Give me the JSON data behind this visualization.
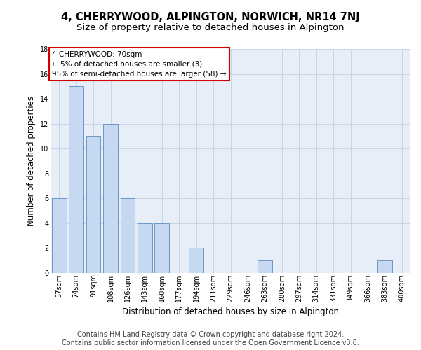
{
  "title": "4, CHERRYWOOD, ALPINGTON, NORWICH, NR14 7NJ",
  "subtitle": "Size of property relative to detached houses in Alpington",
  "xlabel": "Distribution of detached houses by size in Alpington",
  "ylabel": "Number of detached properties",
  "categories": [
    "57sqm",
    "74sqm",
    "91sqm",
    "108sqm",
    "126sqm",
    "143sqm",
    "160sqm",
    "177sqm",
    "194sqm",
    "211sqm",
    "229sqm",
    "246sqm",
    "263sqm",
    "280sqm",
    "297sqm",
    "314sqm",
    "331sqm",
    "349sqm",
    "366sqm",
    "383sqm",
    "400sqm"
  ],
  "values": [
    6,
    15,
    11,
    12,
    6,
    4,
    4,
    0,
    2,
    0,
    0,
    0,
    1,
    0,
    0,
    0,
    0,
    0,
    0,
    1,
    0
  ],
  "bar_color": "#c6d9f0",
  "bar_edge_color": "#5b8ec4",
  "grid_color": "#c8d4e8",
  "background_color": "#e8eef8",
  "annotation_text": "4 CHERRYWOOD: 70sqm\n← 5% of detached houses are smaller (3)\n95% of semi-detached houses are larger (58) →",
  "annotation_box_color": "white",
  "annotation_box_edge_color": "#cc0000",
  "ylim": [
    0,
    18
  ],
  "yticks": [
    0,
    2,
    4,
    6,
    8,
    10,
    12,
    14,
    16,
    18
  ],
  "footer_line1": "Contains HM Land Registry data © Crown copyright and database right 2024.",
  "footer_line2": "Contains public sector information licensed under the Open Government Licence v3.0.",
  "title_fontsize": 10.5,
  "subtitle_fontsize": 9.5,
  "axis_label_fontsize": 8.5,
  "tick_fontsize": 7,
  "footer_fontsize": 7,
  "annotation_fontsize": 7.5
}
